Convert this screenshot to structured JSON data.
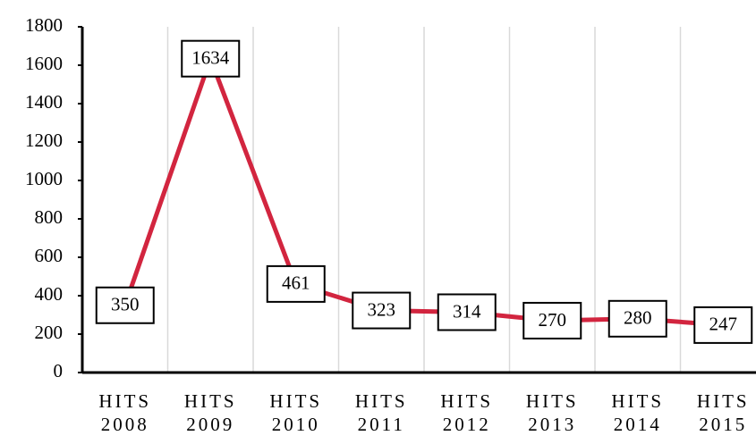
{
  "chart_data": {
    "type": "line",
    "categories": [
      "HITS 2008",
      "HITS 2009",
      "HITS 2010",
      "HITS 2011",
      "HITS 2012",
      "HITS 2013",
      "HITS 2014",
      "HITS 2015"
    ],
    "values": [
      350,
      1634,
      461,
      323,
      314,
      270,
      280,
      247
    ],
    "color": "#d2253f",
    "ylim": [
      0,
      1800
    ],
    "yticks": [
      0,
      200,
      400,
      600,
      800,
      1000,
      1200,
      1400,
      1600,
      1800
    ],
    "grid": true
  }
}
